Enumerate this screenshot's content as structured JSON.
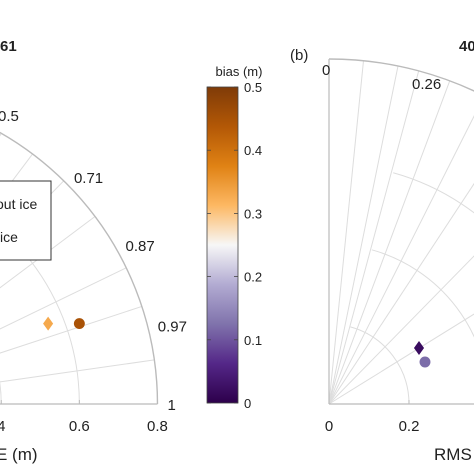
{
  "chart_data": [
    {
      "panel": "(a)",
      "type": "scatter",
      "subtype": "taylor-diagram",
      "title_partial": "61",
      "xlabel_partial": "E (m)",
      "corr_label_top": "0.5",
      "corr_ticks": [
        "0.71",
        "0.87",
        "0.97",
        "1"
      ],
      "corr_values": [
        0.71,
        0.87,
        0.97,
        1.0
      ],
      "x_ticks": [
        "4",
        "0.6",
        "0.8"
      ],
      "x_tick_values": [
        0.4,
        0.6,
        0.8
      ],
      "rms_max": 0.8,
      "grid": true,
      "legend": {
        "placement": "upper-left (clipped)",
        "entries": [
          {
            "label": "out ice",
            "marker": "diamond"
          },
          {
            "label": "ice",
            "marker": "circle"
          }
        ]
      },
      "points": [
        {
          "marker": "diamond",
          "x": 0.52,
          "y": 0.06,
          "bias": 0.33
        },
        {
          "marker": "circle",
          "x": 0.6,
          "y": 0.06,
          "bias": 0.45
        }
      ]
    },
    {
      "panel": "(b)",
      "type": "scatter",
      "subtype": "taylor-diagram",
      "title_partial": "40",
      "xlabel_partial": "RMS",
      "corr_label_top": "0",
      "corr_ticks": [
        "0.26"
      ],
      "corr_values": [
        0.26
      ],
      "x_ticks": [
        "0",
        "0.2"
      ],
      "x_tick_values": [
        0,
        0.2
      ],
      "grid": true,
      "points": [
        {
          "marker": "diamond",
          "x": 0.24,
          "y": 0.07,
          "bias": 0.02
        },
        {
          "marker": "circle",
          "x": 0.255,
          "y": 0.035,
          "bias": 0.12
        }
      ]
    }
  ],
  "colorbar": {
    "title": "bias (m)",
    "ticks": [
      "0",
      "0.1",
      "0.2",
      "0.3",
      "0.4",
      "0.5"
    ],
    "tick_values": [
      0,
      0.1,
      0.2,
      0.3,
      0.4,
      0.5
    ],
    "range": [
      0,
      0.5
    ],
    "colormap": [
      "#2d004b",
      "#542788",
      "#8073ac",
      "#b2abd2",
      "#f7f7f7",
      "#fdb863",
      "#e08214",
      "#b35806",
      "#7f3b08"
    ]
  }
}
